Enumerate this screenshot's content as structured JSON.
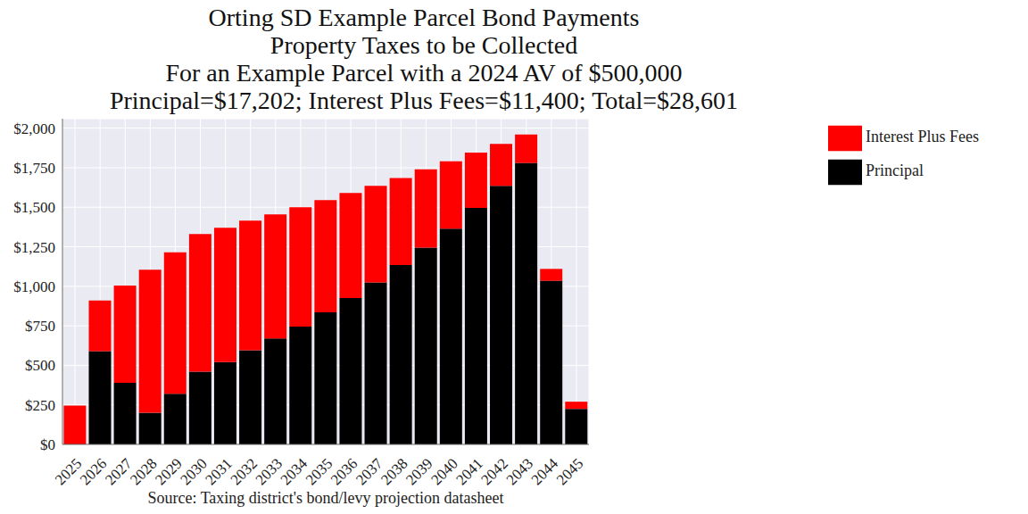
{
  "chart_data": {
    "type": "bar",
    "title": "Orting SD Example Parcel Bond Payments\nProperty Taxes to be Collected\nFor an Example Parcel with a 2024 AV of $500,000\nPrincipal=$17,202; Interest Plus Fees=$11,400; Total=$28,601",
    "x_label": "Source: Taxing district's bond/levy projection datasheet",
    "categories": [
      "2025",
      "2026",
      "2027",
      "2028",
      "2029",
      "2030",
      "2031",
      "2032",
      "2033",
      "2034",
      "2035",
      "2036",
      "2037",
      "2038",
      "2039",
      "2040",
      "2041",
      "2042",
      "2043",
      "2044",
      "2045"
    ],
    "series": [
      {
        "name": "Principal",
        "color": "#000000",
        "values": [
          0,
          590,
          390,
          200,
          320,
          460,
          520,
          595,
          670,
          745,
          835,
          925,
          1025,
          1135,
          1245,
          1365,
          1495,
          1635,
          1780,
          1035,
          225
        ]
      },
      {
        "name": "Interest Plus Fees",
        "color": "#ff0000",
        "values": [
          245,
          320,
          615,
          905,
          895,
          870,
          850,
          820,
          785,
          755,
          710,
          665,
          610,
          550,
          495,
          425,
          350,
          265,
          180,
          75,
          45
        ]
      }
    ],
    "stacked": true,
    "ylim": [
      0,
      2060
    ],
    "yticks": [
      {
        "value": 0,
        "label": "$0"
      },
      {
        "value": 250,
        "label": "$250"
      },
      {
        "value": 500,
        "label": "$500"
      },
      {
        "value": 750,
        "label": "$750"
      },
      {
        "value": 1000,
        "label": "$1,000"
      },
      {
        "value": 1250,
        "label": "$1,250"
      },
      {
        "value": 1500,
        "label": "$1,500"
      },
      {
        "value": 1750,
        "label": "$1,750"
      },
      {
        "value": 2000,
        "label": "$2,000"
      }
    ],
    "grid": true,
    "legend": "right"
  }
}
